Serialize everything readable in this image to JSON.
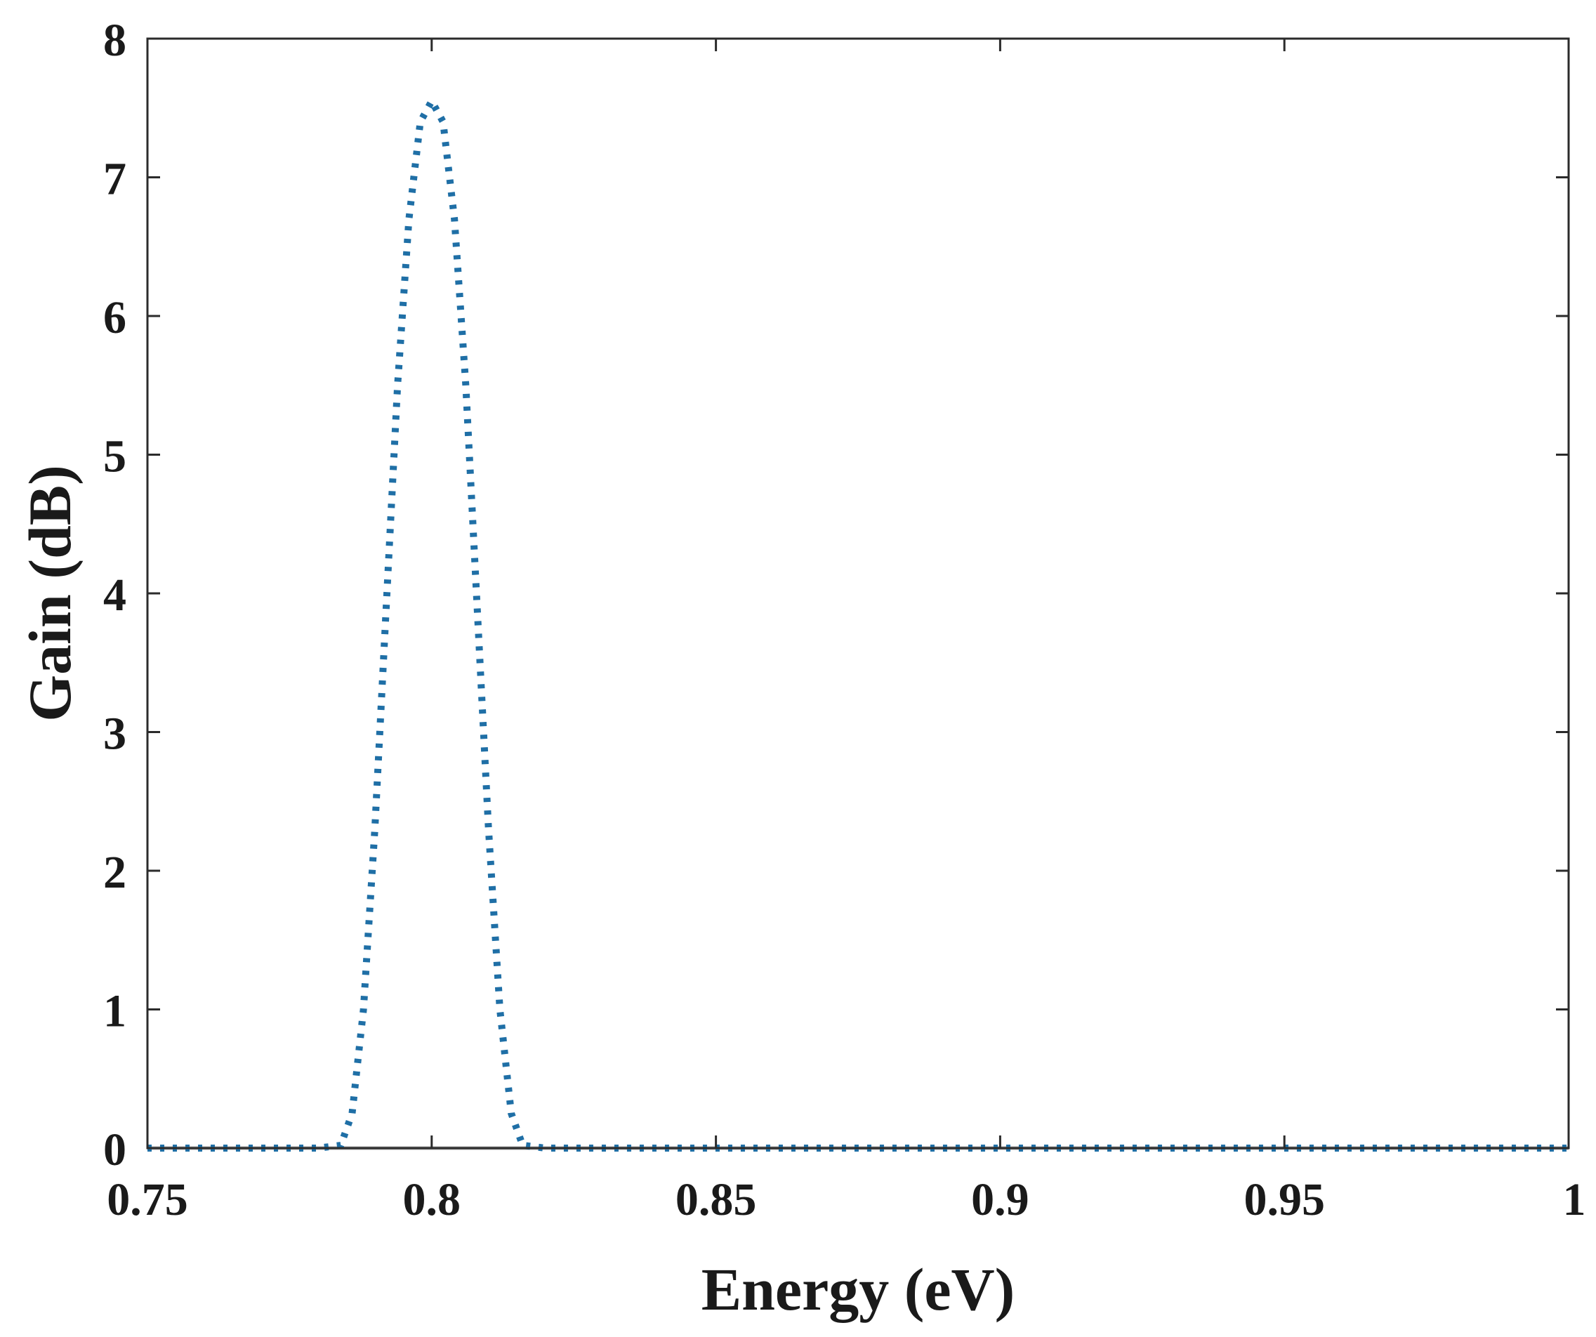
{
  "chart_data": {
    "type": "line",
    "title": "",
    "xlabel": "Energy (eV)",
    "ylabel": "Gain (dB)",
    "xlim": [
      0.75,
      1.0
    ],
    "ylim": [
      0,
      8
    ],
    "xticks": [
      0.75,
      0.8,
      0.85,
      0.9,
      0.95,
      1.0
    ],
    "xtick_labels": [
      "0.75",
      "0.8",
      "0.85",
      "0.9",
      "0.95",
      "1"
    ],
    "yticks": [
      0,
      1,
      2,
      3,
      4,
      5,
      6,
      7,
      8
    ],
    "ytick_labels": [
      "0",
      "1",
      "2",
      "3",
      "4",
      "5",
      "6",
      "7",
      "8"
    ],
    "grid": false,
    "series": [
      {
        "line_style": "dotted",
        "color": "#1f6fa6",
        "x": [
          0.75,
          0.76,
          0.77,
          0.78,
          0.784,
          0.786,
          0.788,
          0.79,
          0.792,
          0.794,
          0.796,
          0.798,
          0.8,
          0.802,
          0.804,
          0.806,
          0.808,
          0.81,
          0.812,
          0.814,
          0.816,
          0.82,
          0.85,
          0.9,
          0.95,
          1.0
        ],
        "y": [
          0,
          0,
          0,
          0,
          0.02,
          0.25,
          1.0,
          2.3,
          3.9,
          5.5,
          6.7,
          7.4,
          7.55,
          7.4,
          6.7,
          5.5,
          3.9,
          2.3,
          1.0,
          0.25,
          0.02,
          0,
          0,
          0,
          0,
          0
        ]
      }
    ],
    "baseline": {
      "y": 0,
      "color": "#a6a6a6"
    }
  }
}
